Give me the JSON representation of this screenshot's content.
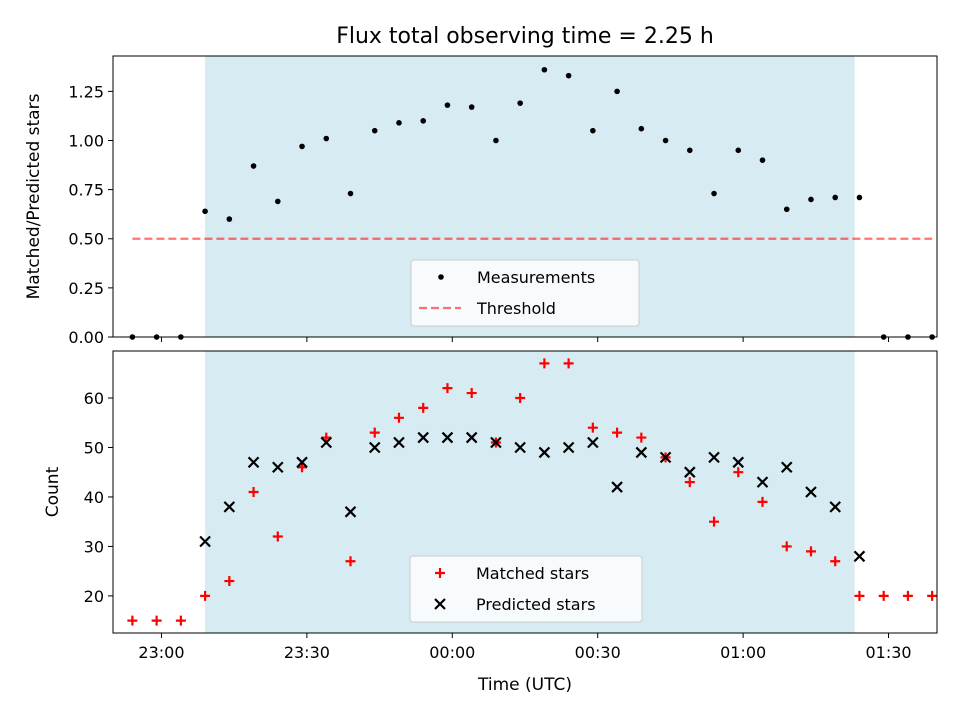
{
  "title": "Flux total observing time = 2.25 h",
  "colors": {
    "observing_window": "#add8e6",
    "threshold": "#ff0000",
    "measurements": "#000000",
    "matched": "#ff0000",
    "predicted": "#000000",
    "axes": "#000000",
    "legend_bg": "#ffffff",
    "legend_border": "#cccccc"
  },
  "chart_data": [
    {
      "type": "scatter",
      "xlabel": "",
      "ylabel": "Matched/Predicted stars",
      "xlim": [
        "22:50",
        "01:40"
      ],
      "ylim": [
        0,
        1.43
      ],
      "x_tick_labels": [
        "23:00",
        "23:30",
        "00:00",
        "00:30",
        "01:00",
        "01:30"
      ],
      "y_ticks": [
        "0.00",
        "0.25",
        "0.50",
        "0.75",
        "1.00",
        "1.25"
      ],
      "shaded_interval": [
        "23:09",
        "01:23"
      ],
      "legend_position": "lower center",
      "series": [
        {
          "name": "Measurements",
          "marker": "dot",
          "x": [
            "22:54",
            "22:59",
            "23:04",
            "23:09",
            "23:14",
            "23:19",
            "23:24",
            "23:29",
            "23:34",
            "23:39",
            "23:44",
            "23:49",
            "23:54",
            "23:59",
            "00:04",
            "00:09",
            "00:14",
            "00:19",
            "00:24",
            "00:29",
            "00:34",
            "00:39",
            "00:44",
            "00:49",
            "00:54",
            "00:59",
            "01:04",
            "01:09",
            "01:14",
            "01:19",
            "01:24",
            "01:29",
            "01:34",
            "01:39"
          ],
          "values": [
            0,
            0,
            0,
            0.64,
            0.6,
            0.87,
            0.69,
            0.97,
            1.01,
            0.73,
            1.05,
            1.09,
            1.1,
            1.18,
            1.17,
            1.0,
            1.19,
            1.36,
            1.33,
            1.05,
            1.25,
            1.06,
            1.0,
            0.95,
            0.73,
            0.95,
            0.9,
            0.65,
            0.7,
            0.71,
            0.71,
            0,
            0,
            0
          ]
        },
        {
          "name": "Threshold",
          "style": "dashed",
          "x": [
            "22:54",
            "01:39"
          ],
          "values": [
            0.5,
            0.5
          ]
        }
      ]
    },
    {
      "type": "scatter",
      "xlabel": "Time (UTC)",
      "ylabel": "Count",
      "xlim": [
        "22:50",
        "01:40"
      ],
      "ylim": [
        12.5,
        69.5
      ],
      "x_tick_labels": [
        "23:00",
        "23:30",
        "00:00",
        "00:30",
        "01:00",
        "01:30"
      ],
      "y_ticks": [
        "20",
        "30",
        "40",
        "50",
        "60"
      ],
      "shaded_interval": [
        "23:09",
        "01:23"
      ],
      "legend_position": "lower center",
      "series": [
        {
          "name": "Matched stars",
          "marker": "plus",
          "x": [
            "22:54",
            "22:59",
            "23:04",
            "23:09",
            "23:14",
            "23:19",
            "23:24",
            "23:29",
            "23:34",
            "23:39",
            "23:44",
            "23:49",
            "23:54",
            "23:59",
            "00:04",
            "00:09",
            "00:14",
            "00:19",
            "00:24",
            "00:29",
            "00:34",
            "00:39",
            "00:44",
            "00:49",
            "00:54",
            "00:59",
            "01:04",
            "01:09",
            "01:14",
            "01:19",
            "01:24",
            "01:29",
            "01:34",
            "01:39"
          ],
          "values": [
            15,
            15,
            15,
            20,
            23,
            41,
            32,
            46,
            52,
            27,
            53,
            56,
            58,
            62,
            61,
            51,
            60,
            67,
            67,
            54,
            53,
            52,
            48,
            43,
            35,
            45,
            39,
            30,
            29,
            27,
            20,
            20,
            20,
            20
          ]
        },
        {
          "name": "Predicted stars",
          "marker": "x",
          "x": [
            "23:09",
            "23:14",
            "23:19",
            "23:24",
            "23:29",
            "23:34",
            "23:39",
            "23:44",
            "23:49",
            "23:54",
            "23:59",
            "00:04",
            "00:09",
            "00:14",
            "00:19",
            "00:24",
            "00:29",
            "00:34",
            "00:39",
            "00:44",
            "00:49",
            "00:54",
            "00:59",
            "01:04",
            "01:09",
            "01:14",
            "01:19",
            "01:24"
          ],
          "values": [
            31,
            38,
            47,
            46,
            47,
            51,
            37,
            50,
            51,
            52,
            52,
            52,
            51,
            50,
            49,
            50,
            51,
            42,
            49,
            48,
            45,
            48,
            47,
            43,
            46,
            41,
            38,
            28
          ]
        }
      ]
    }
  ]
}
